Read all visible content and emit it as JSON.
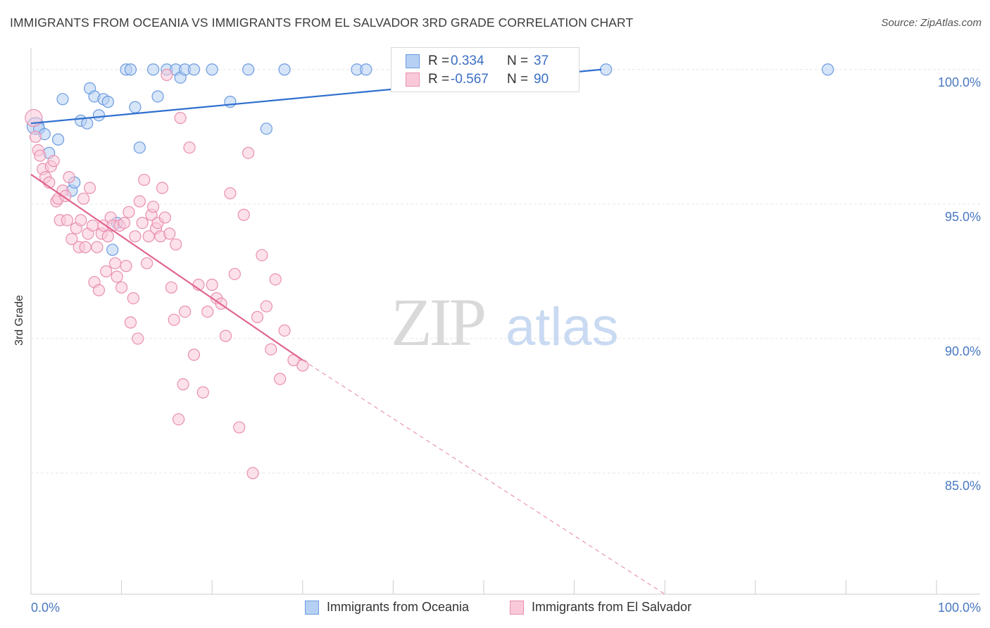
{
  "chart_data": {
    "type": "scatter",
    "title": "IMMIGRANTS FROM OCEANIA VS IMMIGRANTS FROM EL SALVADOR 3RD GRADE CORRELATION CHART",
    "source": "Source: ZipAtlas.com",
    "ylabel": "3rd Grade",
    "xlim": [
      0,
      100
    ],
    "ylim": [
      80.5,
      100.7
    ],
    "y_ticks": [
      {
        "value": 100,
        "label": "100.0%"
      },
      {
        "value": 95,
        "label": "95.0%"
      },
      {
        "value": 90,
        "label": "90.0%"
      },
      {
        "value": 85,
        "label": "85.0%"
      }
    ],
    "x_tick_labels": {
      "left": "0.0%",
      "right": "100.0%"
    },
    "watermark": {
      "zip": "ZIP",
      "atlas": "atlas"
    },
    "series": [
      {
        "name": "Immigrants from Oceania",
        "color": "#6b9be0",
        "fill": "#b6d0f3",
        "line_color": "#2f6fce",
        "R": "0.334",
        "N": "37",
        "trend": {
          "x0": 0,
          "y0": 98.0,
          "x1": 63,
          "y1": 100.0
        },
        "x": [
          0.5,
          0.9,
          1.5,
          2.0,
          3.0,
          3.5,
          4.5,
          4.8,
          5.5,
          6.2,
          6.5,
          7.0,
          7.5,
          8.0,
          8.5,
          9.0,
          9.5,
          10.5,
          11.0,
          11.5,
          12.0,
          13.5,
          14.0,
          15.0,
          16.0,
          16.5,
          17.0,
          18.0,
          20.0,
          22.0,
          24.0,
          26.0,
          28.0,
          36.0,
          37.0,
          63.5,
          88.0
        ],
        "y": [
          97.9,
          97.8,
          97.6,
          96.9,
          97.4,
          98.9,
          95.5,
          95.8,
          98.1,
          98.0,
          99.3,
          99.0,
          98.3,
          98.9,
          98.8,
          93.3,
          94.3,
          100.0,
          100.0,
          98.6,
          97.1,
          100.0,
          99.0,
          100.0,
          100.0,
          99.7,
          100.0,
          100.0,
          100.0,
          98.8,
          100.0,
          97.8,
          100.0,
          100.0,
          100.0,
          100.0,
          100.0
        ]
      },
      {
        "name": "Immigrants from El Salvador",
        "color": "#e98fb0",
        "fill": "#f9c9d9",
        "line_color": "#e0648f",
        "R": "-0.567",
        "N": "90",
        "trend": {
          "x0": 0,
          "y0": 96.1,
          "x1": 30,
          "y1": 89.2
        },
        "trend_dashed": {
          "x0": 30,
          "y0": 89.2,
          "x1": 70,
          "y1": 80.5
        },
        "x": [
          0.3,
          0.5,
          0.8,
          1.0,
          1.3,
          1.6,
          2.0,
          2.2,
          2.5,
          2.8,
          3.0,
          3.2,
          3.5,
          3.8,
          4.0,
          4.2,
          4.5,
          5.0,
          5.3,
          5.5,
          5.8,
          6.0,
          6.3,
          6.5,
          6.8,
          7.0,
          7.3,
          7.5,
          7.8,
          8.0,
          8.3,
          8.5,
          8.8,
          9.0,
          9.3,
          9.5,
          9.8,
          10.0,
          10.3,
          10.5,
          10.8,
          11.0,
          11.3,
          11.5,
          11.8,
          12.0,
          12.3,
          12.5,
          12.8,
          13.0,
          13.3,
          13.5,
          13.8,
          14.0,
          14.3,
          14.5,
          14.8,
          15.0,
          15.3,
          15.5,
          15.8,
          16.0,
          16.3,
          16.5,
          16.8,
          17.0,
          17.5,
          18.0,
          18.5,
          19.0,
          19.5,
          20.0,
          20.5,
          21.0,
          21.5,
          22.0,
          22.5,
          23.0,
          23.5,
          24.0,
          24.5,
          25.0,
          25.5,
          26.0,
          26.5,
          27.0,
          27.5,
          28.0,
          29.0,
          30.0
        ],
        "y": [
          98.2,
          97.5,
          97.0,
          96.8,
          96.3,
          96.0,
          95.8,
          96.4,
          96.6,
          95.1,
          95.2,
          94.4,
          95.5,
          95.3,
          94.4,
          96.0,
          93.7,
          94.1,
          93.4,
          94.4,
          95.2,
          93.4,
          93.9,
          95.6,
          94.2,
          92.1,
          93.4,
          91.8,
          93.9,
          94.2,
          92.5,
          93.8,
          94.5,
          94.2,
          92.8,
          92.3,
          94.2,
          91.9,
          94.3,
          92.7,
          94.7,
          90.6,
          91.5,
          93.8,
          90.0,
          95.1,
          94.3,
          95.9,
          92.8,
          93.8,
          94.6,
          94.9,
          94.1,
          94.3,
          93.8,
          95.6,
          94.5,
          99.8,
          93.9,
          91.9,
          90.7,
          93.5,
          87.0,
          98.2,
          88.3,
          91.0,
          97.1,
          89.4,
          92.0,
          88.0,
          91.0,
          92.0,
          91.5,
          91.3,
          90.1,
          95.4,
          92.4,
          86.7,
          94.6,
          96.9,
          85.0,
          90.8,
          93.1,
          91.2,
          89.6,
          92.2,
          88.5,
          90.3,
          89.2,
          89.0
        ]
      }
    ]
  }
}
